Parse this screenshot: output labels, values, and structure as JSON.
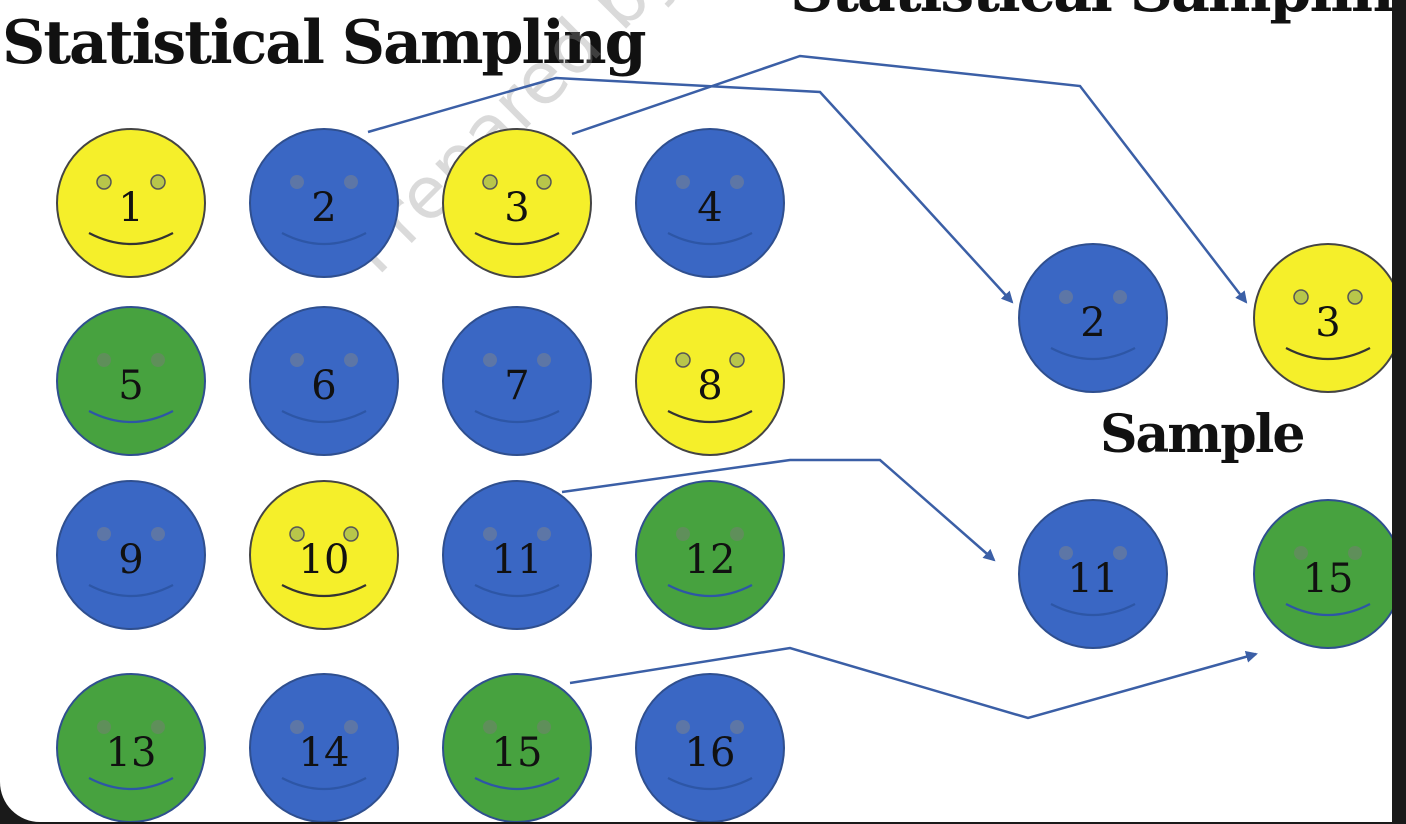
{
  "title": "Statistical Sampling",
  "title_partial": "Statistical Sampling",
  "sample_label": "Sample",
  "watermark": "Prepared by Sabri CALIK",
  "colors": {
    "yellow": "#f5ef2a",
    "blue": "#3a67c4",
    "green": "#47a23f",
    "arrow": "#3b5fa6"
  },
  "population": [
    {
      "number": "1",
      "color": "yellow"
    },
    {
      "number": "2",
      "color": "blue"
    },
    {
      "number": "3",
      "color": "yellow"
    },
    {
      "number": "4",
      "color": "blue"
    },
    {
      "number": "5",
      "color": "green"
    },
    {
      "number": "6",
      "color": "blue"
    },
    {
      "number": "7",
      "color": "blue"
    },
    {
      "number": "8",
      "color": "yellow"
    },
    {
      "number": "9",
      "color": "blue"
    },
    {
      "number": "10",
      "color": "yellow"
    },
    {
      "number": "11",
      "color": "blue"
    },
    {
      "number": "12",
      "color": "green"
    },
    {
      "number": "13",
      "color": "green"
    },
    {
      "number": "14",
      "color": "blue"
    },
    {
      "number": "15",
      "color": "green"
    },
    {
      "number": "16",
      "color": "blue"
    }
  ],
  "sample": [
    {
      "number": "2",
      "color": "blue"
    },
    {
      "number": "3",
      "color": "yellow"
    },
    {
      "number": "11",
      "color": "blue"
    },
    {
      "number": "15",
      "color": "green"
    }
  ]
}
